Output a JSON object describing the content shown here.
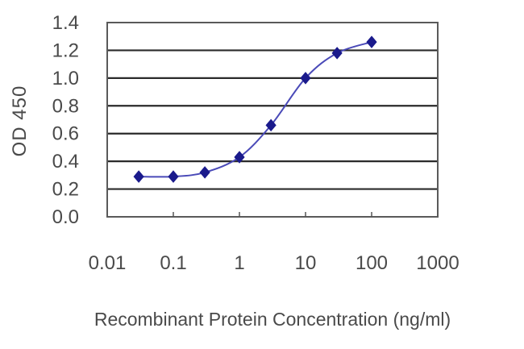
{
  "chart_data": {
    "type": "line",
    "title": "",
    "xlabel": "Recombinant Protein Concentration (ng/ml)",
    "ylabel": "OD 450",
    "xscale": "log",
    "xlim": [
      0.01,
      1000
    ],
    "ylim": [
      0.0,
      1.4
    ],
    "x_ticks": [
      "0.01",
      "0.1",
      "1",
      "10",
      "100",
      "1000"
    ],
    "y_ticks": [
      "0.0",
      "0.2",
      "0.4",
      "0.6",
      "0.8",
      "1.0",
      "1.2",
      "1.4"
    ],
    "grid": "horizontal",
    "legend": "none",
    "series": [
      {
        "name": "OD 450",
        "color": "#1a1a8c",
        "marker": "diamond",
        "x": [
          0.03,
          0.1,
          0.3,
          1,
          3,
          10,
          30,
          100
        ],
        "values": [
          0.29,
          0.29,
          0.32,
          0.43,
          0.66,
          1.0,
          1.18,
          1.26
        ]
      }
    ]
  },
  "colors": {
    "line": "#4a4ab8",
    "marker": "#1a1a8c",
    "grid": "#2a2a2a",
    "frame": "#555555",
    "text": "#4a4a4a"
  }
}
